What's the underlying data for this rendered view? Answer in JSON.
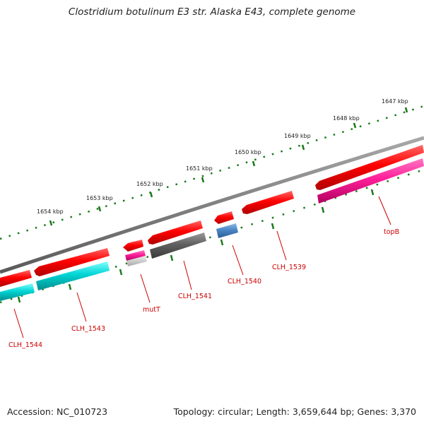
{
  "title": "Clostridium botulinum E3 str. Alaska E43, complete genome",
  "accession": "Accession: NC_010723",
  "summary": "Topology: circular; Length: 3,659,644 bp; Genes: 3,370",
  "ruler": [
    {
      "label": "1647 kbp",
      "kbp": 1647
    },
    {
      "label": "1648 kbp",
      "kbp": 1648
    },
    {
      "label": "1649 kbp",
      "kbp": 1649
    },
    {
      "label": "1650 kbp",
      "kbp": 1650
    },
    {
      "label": "1651 kbp",
      "kbp": 1651
    },
    {
      "label": "1652 kbp",
      "kbp": 1652
    },
    {
      "label": "1653 kbp",
      "kbp": 1653
    },
    {
      "label": "1654 kbp",
      "kbp": 1654
    }
  ],
  "genes": [
    {
      "name": "topB",
      "color": "#ff2a9a"
    },
    {
      "name": "CLH_1539",
      "color": "#ff0000"
    },
    {
      "name": "CLH_1540",
      "color": "#4a86c5"
    },
    {
      "name": "CLH_1541",
      "color": "#606060"
    },
    {
      "name": "mutT",
      "color": "#ff2a9a"
    },
    {
      "name": "CLH_1543",
      "color": "#00cccc"
    },
    {
      "name": "CLH_1544",
      "color": "#00cccc"
    }
  ],
  "colors": {
    "cds": "#ff0000",
    "backbone": "#808080",
    "ruler_tick": "#1a7a1a",
    "label": "#cc0000",
    "rrna_grey": "#c8c8c8"
  }
}
